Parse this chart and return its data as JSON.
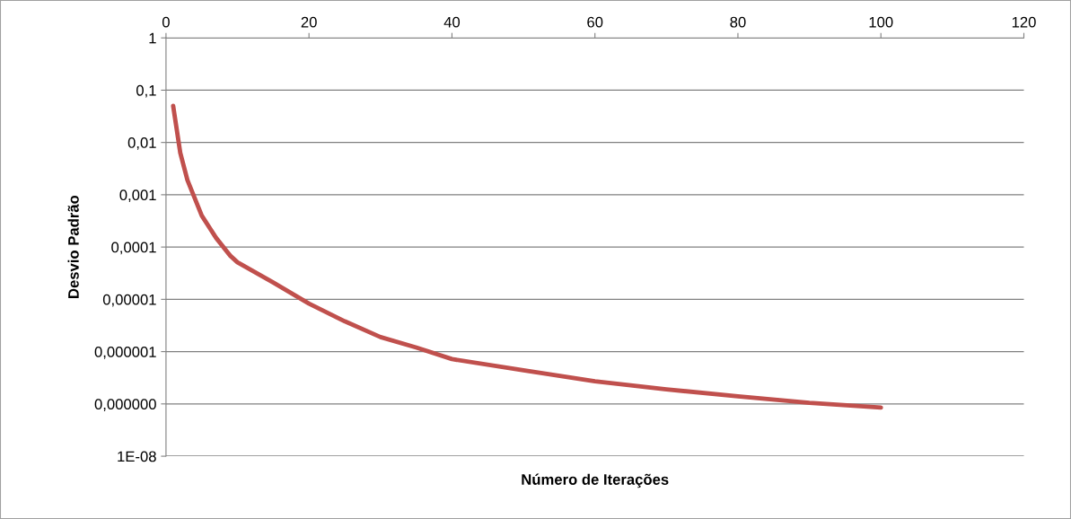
{
  "chart_data": {
    "type": "line",
    "xlabel": "Número de Iterações",
    "ylabel": "Desvio Padrão",
    "log": "y",
    "grid": "y",
    "color": "#c0504d",
    "line_style": "solid",
    "marker": "none",
    "x": [
      1,
      2,
      3,
      5,
      7,
      9,
      10,
      15,
      20,
      25,
      30,
      35,
      40,
      50,
      60,
      70,
      80,
      90,
      100
    ],
    "values": [
      0.05,
      0.0063,
      0.0019,
      0.0004,
      0.00015,
      6.8e-05,
      5.1e-05,
      2.1e-05,
      8.3e-06,
      3.8e-06,
      1.9e-06,
      1.2e-06,
      7.2e-07,
      4.4e-07,
      2.7e-07,
      1.9e-07,
      1.4e-07,
      1.05e-07,
      8.5e-08
    ],
    "xlim": [
      0,
      120
    ],
    "xticks": [
      0,
      20,
      40,
      60,
      80,
      100,
      120
    ],
    "ylim": [
      1e-08,
      1
    ],
    "yticks": [
      {
        "value": 1e-08,
        "label": "1E-08"
      },
      {
        "value": 1e-07,
        "label": "0,000000"
      },
      {
        "value": 1e-06,
        "label": "0,000001"
      },
      {
        "value": 1e-05,
        "label": "0,00001"
      },
      {
        "value": 0.0001,
        "label": "0,0001"
      },
      {
        "value": 0.001,
        "label": "0,001"
      },
      {
        "value": 0.01,
        "label": "0,01"
      },
      {
        "value": 0.1,
        "label": "0,1"
      },
      {
        "value": 1,
        "label": "1"
      }
    ]
  }
}
